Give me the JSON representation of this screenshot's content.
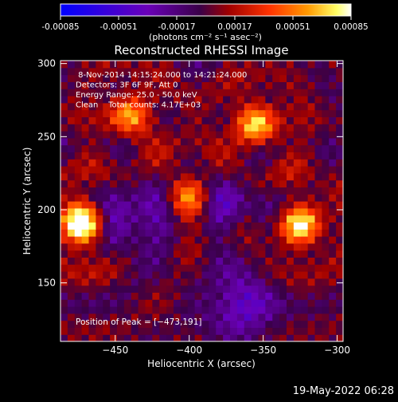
{
  "colorbar": {
    "ticks": [
      -0.00085,
      -0.00051,
      -0.00017,
      0.00017,
      0.00051,
      0.00085
    ],
    "tick_labels": [
      "-0.00085",
      "-0.00051",
      "-0.00017",
      "0.00017",
      "0.00051",
      "0.00085"
    ],
    "unit_label": "(photons cm⁻² s⁻¹ asec⁻²)",
    "range": [
      -0.00085,
      0.00085
    ]
  },
  "chart_data": {
    "type": "heatmap",
    "title": "Reconstructed RHESSI Image",
    "xlabel": "Heliocentric X (arcsec)",
    "ylabel": "Heliocentric Y (arcsec)",
    "xlim": [
      -487,
      -296
    ],
    "ylim": [
      110,
      302
    ],
    "x_ticks": [
      -450,
      -400,
      -350,
      -300
    ],
    "x_tick_labels": [
      "−450",
      "−400",
      "−350",
      "−300"
    ],
    "y_ticks": [
      150,
      200,
      250,
      300
    ],
    "y_tick_labels": [
      "150",
      "200",
      "250",
      "300"
    ],
    "info_lines": [
      " 8-Nov-2014 14:15:24.000 to 14:21:24.000",
      "Detectors: 3F 6F 9F, Att 0",
      "Energy Range: 25.0 - 50.0 keV",
      "Clean    Total counts: 4.17E+03"
    ],
    "peak_label": "Position of Peak = [−473,191]",
    "sources": [
      {
        "x": -473,
        "y": 191,
        "value": 0.00085
      },
      {
        "x": -325,
        "y": 190,
        "value": 0.0006
      },
      {
        "x": -355,
        "y": 258,
        "value": 0.00055
      },
      {
        "x": -440,
        "y": 265,
        "value": 0.00045
      },
      {
        "x": -400,
        "y": 210,
        "value": 0.0004
      }
    ],
    "minima": [
      {
        "x": -440,
        "y": 195,
        "value": -0.00045
      },
      {
        "x": -365,
        "y": 135,
        "value": -0.0004
      },
      {
        "x": -370,
        "y": 205,
        "value": -0.0003
      }
    ]
  },
  "footer": {
    "timestamp": "19-May-2022 06:28"
  },
  "palette": {
    "colorbar_stops": [
      "#0000ff",
      "#7a00c8",
      "#3a0050",
      "#a00000",
      "#ff3300",
      "#ff9900",
      "#ffff66",
      "#ffffff"
    ]
  }
}
